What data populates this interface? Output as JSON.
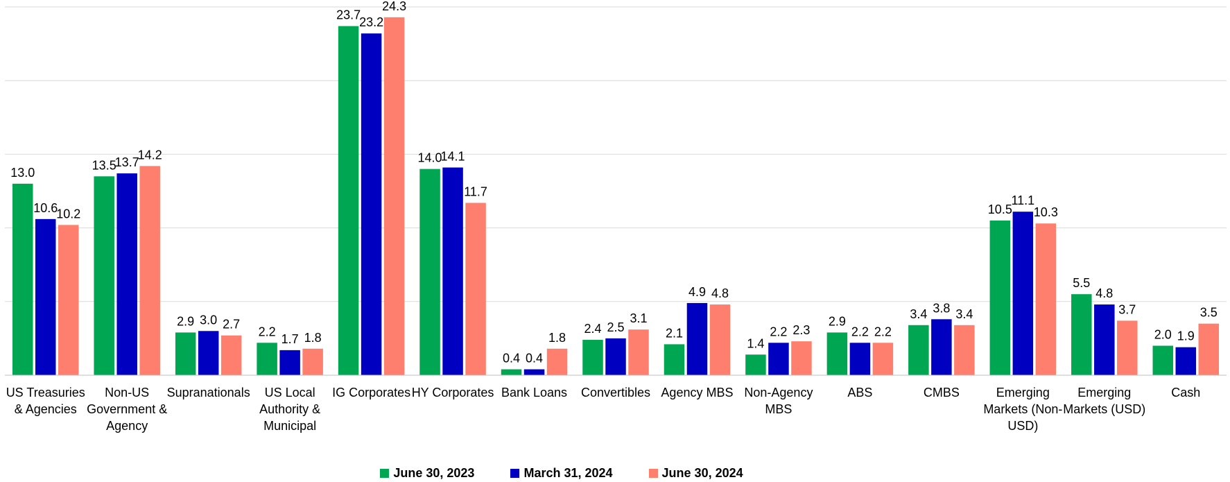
{
  "chart_data": {
    "type": "bar",
    "categories": [
      "US Treasuries & Agencies",
      "Non-US Government & Agency",
      "Supranationals",
      "US Local Authority & Municipal",
      "IG Corporates",
      "HY Corporates",
      "Bank Loans",
      "Convertibles",
      "Agency MBS",
      "Non-Agency MBS",
      "ABS",
      "CMBS",
      "Emerging Markets (Non-USD)",
      "Emerging Markets (USD)",
      "Cash"
    ],
    "series": [
      {
        "name": "June 30, 2023",
        "color": "#00a651",
        "values": [
          13.0,
          13.5,
          2.9,
          2.2,
          23.7,
          14.0,
          0.4,
          2.4,
          2.1,
          1.4,
          2.9,
          3.4,
          10.5,
          5.5,
          2.0
        ],
        "value_labels": [
          "13.0",
          "13.5",
          "2.9",
          "2.2",
          "23.7",
          "14.0",
          "0.4",
          "2.4",
          "2.1",
          "1.4",
          "2.9",
          "3.4",
          "10.5",
          "5.5",
          "2.0"
        ]
      },
      {
        "name": "March 31, 2024",
        "color": "#0000c0",
        "values": [
          10.6,
          13.7,
          3.0,
          1.7,
          23.2,
          14.1,
          0.4,
          2.5,
          4.9,
          2.2,
          2.2,
          3.8,
          11.1,
          4.8,
          1.9
        ],
        "value_labels": [
          "10.6",
          "13.7",
          "3.0",
          "1.7",
          "23.2",
          "14.1",
          "0.4",
          "2.5",
          "4.9",
          "2.2",
          "2.2",
          "3.8",
          "11.1",
          "4.8",
          "1.9"
        ]
      },
      {
        "name": "June 30, 2024",
        "color": "#ff7f6e",
        "values": [
          10.2,
          14.2,
          2.7,
          1.8,
          24.3,
          11.7,
          1.8,
          3.1,
          4.8,
          2.3,
          2.2,
          3.4,
          10.3,
          3.7,
          3.5
        ],
        "value_labels": [
          "10.2",
          "14.2",
          "2.7",
          "1.8",
          "24.3",
          "11.7",
          "1.8",
          "3.1",
          "4.8",
          "2.3",
          "2.2",
          "3.4",
          "10.3",
          "3.7",
          "3.5"
        ]
      }
    ],
    "ylim": [
      0,
      25
    ],
    "yticks": [
      0,
      5,
      10,
      15,
      20,
      25
    ],
    "grid": true,
    "legend": "bottom"
  }
}
